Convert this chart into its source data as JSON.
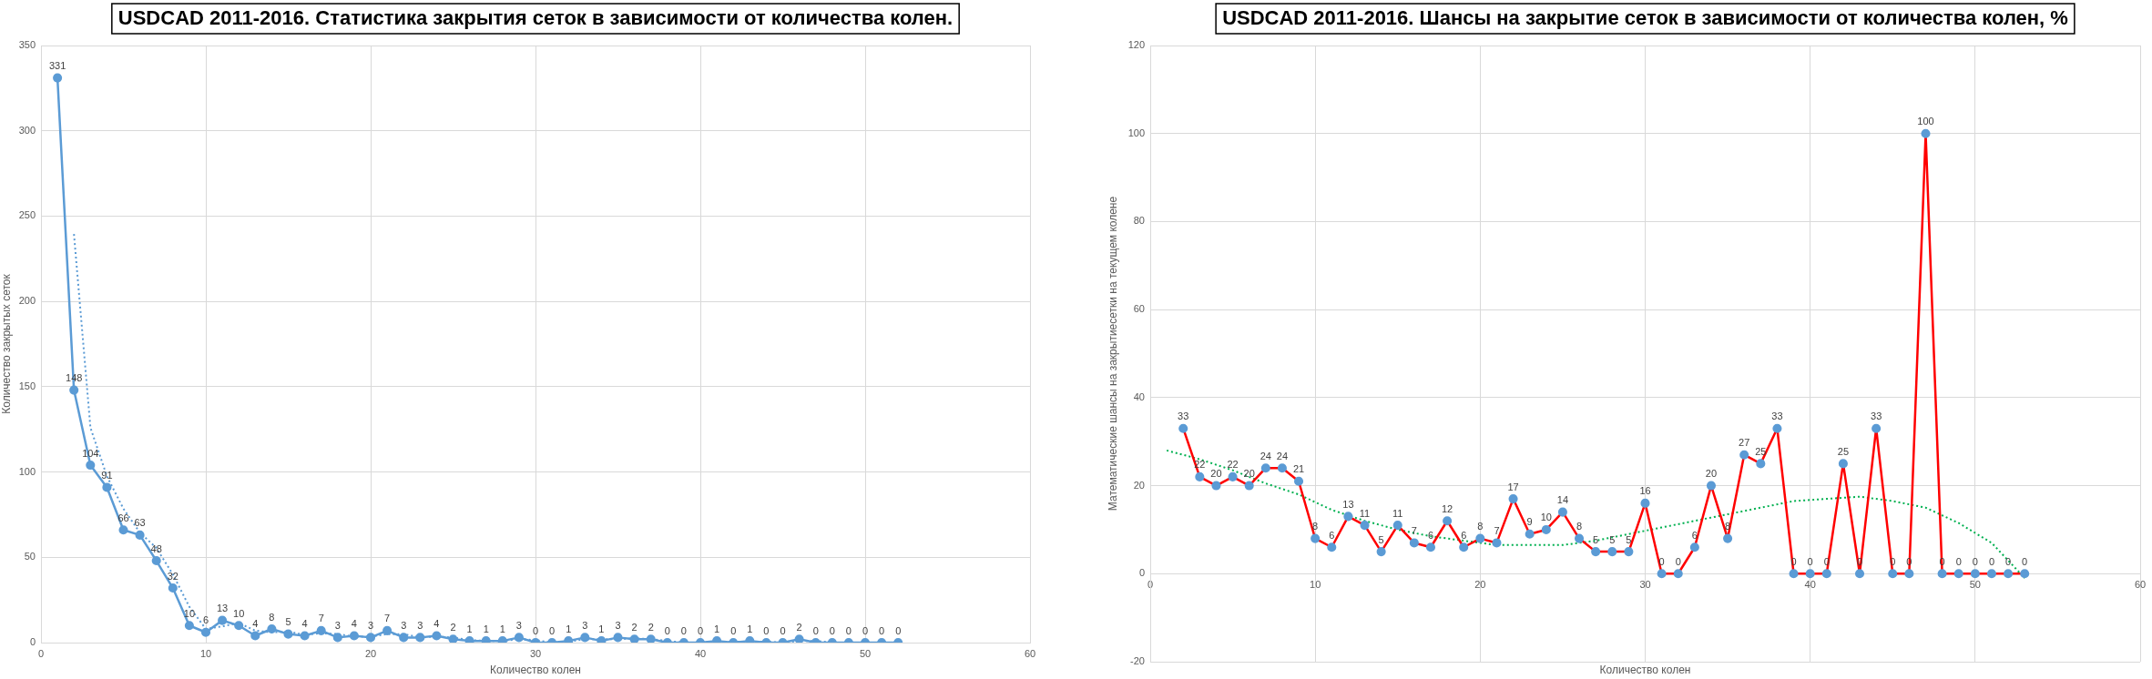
{
  "chart_data": [
    {
      "type": "line",
      "title": "USDCAD 2011-2016. Статистика закрытия сеток в зависимости от количества колен.",
      "xlabel": "Количество колен",
      "ylabel": "Количество закрытых сеток",
      "xlim": [
        0,
        60
      ],
      "xticks": [
        0,
        10,
        20,
        30,
        40,
        50,
        60
      ],
      "ylim": [
        0,
        350
      ],
      "yticks": [
        0,
        50,
        100,
        150,
        200,
        250,
        300,
        350
      ],
      "grid": true,
      "marker": "circle",
      "line_style": "solid",
      "data_labels": true,
      "series": [
        {
          "color": "#5b9bd5",
          "x": [
            1,
            2,
            3,
            4,
            5,
            6,
            7,
            8,
            9,
            10,
            11,
            12,
            13,
            14,
            15,
            16,
            17,
            18,
            19,
            20,
            21,
            22,
            23,
            24,
            25,
            26,
            27,
            28,
            29,
            30,
            31,
            32,
            33,
            34,
            35,
            36,
            37,
            38,
            39,
            40,
            41,
            42,
            43,
            44,
            45,
            46,
            47,
            48,
            49,
            50,
            51,
            52
          ],
          "values": [
            331,
            148,
            104,
            91,
            66,
            63,
            48,
            32,
            10,
            6,
            13,
            10,
            4,
            8,
            5,
            4,
            7,
            3,
            4,
            3,
            7,
            3,
            3,
            4,
            2,
            1,
            1,
            1,
            3,
            0,
            0,
            1,
            3,
            1,
            3,
            2,
            2,
            0,
            0,
            0,
            1,
            0,
            1,
            0,
            0,
            2,
            0,
            0,
            0,
            0,
            0,
            0
          ]
        },
        {
          "type": "line",
          "color": "#5b9bd5",
          "marker": "none",
          "line_style": "dotted",
          "data_labels": false,
          "x": [
            2,
            3,
            4,
            5,
            6,
            7,
            8,
            9,
            10,
            11,
            12,
            13,
            14,
            15,
            16,
            17,
            18,
            19,
            20,
            21,
            22,
            23,
            24,
            25,
            26,
            27,
            28,
            29,
            30,
            31,
            32,
            33,
            34,
            35,
            36,
            37,
            38,
            39,
            40,
            41,
            42,
            43,
            44,
            45,
            46,
            47,
            48,
            49,
            50,
            51,
            52
          ],
          "values": [
            239.5,
            126,
            97.5,
            78.5,
            64.5,
            55.5,
            40,
            21,
            8,
            9.5,
            11.5,
            7,
            6,
            6.5,
            4.5,
            5.5,
            5,
            3.5,
            3.5,
            5,
            5,
            3,
            3.5,
            3,
            1.5,
            1,
            1,
            2,
            1.5,
            0,
            0.5,
            2,
            2,
            2,
            2.5,
            2,
            1,
            0,
            0,
            0.5,
            0.5,
            0.5,
            0.5,
            0,
            1,
            1,
            0,
            0,
            0,
            0,
            0
          ]
        }
      ]
    },
    {
      "type": "line",
      "title": "USDCAD 2011-2016. Шансы на закрытие сеток в зависимости от количества колен, %",
      "xlabel": "Количество колен",
      "ylabel": "Математические шансы на закрытиесетки на текущем колене",
      "xlim": [
        0,
        60
      ],
      "xticks": [
        0,
        10,
        20,
        30,
        40,
        50,
        60
      ],
      "ylim": [
        -20,
        120
      ],
      "yticks": [
        -20,
        0,
        20,
        40,
        60,
        80,
        100,
        120
      ],
      "grid": true,
      "marker": "circle",
      "line_style": "solid",
      "data_labels": true,
      "series": [
        {
          "color": "#ff0000",
          "colors": [
            "#5b9bd5",
            "#5b9bd5",
            "#5b9bd5",
            "#5b9bd5",
            "#5b9bd5",
            "#5b9bd5",
            "#5b9bd5",
            "#5b9bd5",
            "#5b9bd5",
            "#5b9bd5",
            "#5b9bd5",
            "#5b9bd5",
            "#5b9bd5",
            "#5b9bd5",
            "#5b9bd5",
            "#5b9bd5",
            "#5b9bd5",
            "#5b9bd5",
            "#5b9bd5",
            "#5b9bd5",
            "#5b9bd5",
            "#5b9bd5",
            "#5b9bd5",
            "#5b9bd5",
            "#5b9bd5",
            "#5b9bd5",
            "#5b9bd5",
            "#5b9bd5",
            "#5b9bd5",
            "#5b9bd5",
            "#5b9bd5",
            "#5b9bd5",
            "#5b9bd5",
            "#5b9bd5",
            "#5b9bd5",
            "#5b9bd5",
            "#5b9bd5",
            "#5b9bd5",
            "#5b9bd5",
            "#5b9bd5",
            "#5b9bd5",
            "#5b9bd5",
            "#5b9bd5",
            "#5b9bd5",
            "#5b9bd5",
            "#5b9bd5",
            "#5b9bd5",
            "#5b9bd5",
            "#5b9bd5",
            "#5b9bd5",
            "#5b9bd5",
            "#5b9bd5"
          ],
          "x": [
            2,
            3,
            4,
            5,
            6,
            7,
            8,
            9,
            10,
            11,
            12,
            13,
            14,
            15,
            16,
            17,
            18,
            19,
            20,
            21,
            22,
            23,
            24,
            25,
            26,
            27,
            28,
            29,
            30,
            31,
            32,
            33,
            34,
            35,
            36,
            37,
            38,
            39,
            40,
            41,
            42,
            43,
            44,
            45,
            46,
            47,
            48,
            49,
            50,
            51,
            52,
            53
          ],
          "values": [
            33,
            22,
            20,
            22,
            20,
            24,
            24,
            21,
            8,
            6,
            13,
            11,
            5,
            11,
            7,
            6,
            12,
            6,
            8,
            7,
            17,
            9,
            10,
            14,
            8,
            5,
            5,
            5,
            16,
            0,
            0,
            6,
            20,
            8,
            27,
            25,
            33,
            0,
            0,
            0,
            25,
            0,
            33,
            0,
            0,
            100,
            0,
            0,
            0,
            0,
            0,
            0
          ]
        },
        {
          "type": "line",
          "color": "#00b050",
          "marker": "none",
          "line_style": "dotted",
          "data_labels": false,
          "x": [
            1,
            3,
            5,
            7,
            9,
            11,
            13,
            15,
            17,
            19,
            21,
            23,
            25,
            27,
            29,
            31,
            33,
            35,
            37,
            39,
            41,
            43,
            45,
            47,
            49,
            51,
            53
          ],
          "values": [
            28,
            26,
            23.5,
            20.5,
            18,
            14.5,
            12,
            10,
            8.5,
            7.5,
            6.5,
            6.5,
            6.5,
            7.5,
            9,
            10.5,
            12,
            13.5,
            15,
            16.5,
            17,
            17.5,
            16.5,
            15,
            11.5,
            7,
            -1
          ]
        }
      ]
    }
  ]
}
